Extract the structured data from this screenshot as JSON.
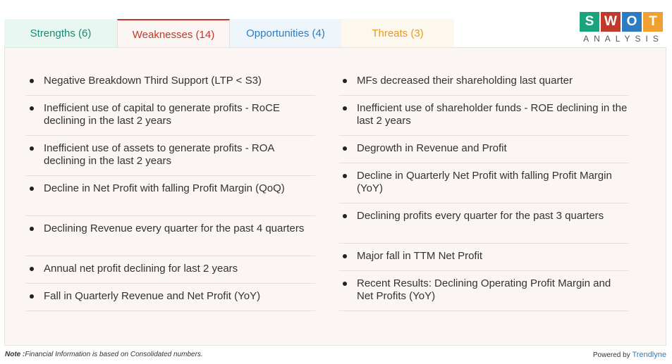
{
  "tabs": [
    {
      "label": "Strengths (6)"
    },
    {
      "label": "Weaknesses (14)"
    },
    {
      "label": "Opportunities (4)"
    },
    {
      "label": "Threats (3)"
    }
  ],
  "active_tab": "Weaknesses (14)",
  "logo": {
    "letters": [
      "S",
      "W",
      "O",
      "T"
    ],
    "letter_colors": [
      "#1aa37c",
      "#c0392b",
      "#2d7cc1",
      "#f0a030"
    ],
    "subtitle": "ANALYSIS"
  },
  "weaknesses": {
    "left": [
      "Negative Breakdown Third Support (LTP < S3)",
      "Inefficient use of capital to generate profits - RoCE declining in the last 2 years",
      "Inefficient use of assets to generate profits - ROA declining in the last 2 years",
      "Decline in Net Profit with falling Profit Margin (QoQ)",
      "Declining Revenue every quarter for the past 4 quarters",
      "Annual net profit declining for last 2 years",
      "Fall in Quarterly Revenue and Net Profit (YoY)"
    ],
    "right": [
      "MFs decreased their shareholding last quarter",
      "Inefficient use of shareholder funds - ROE declining in the last 2 years",
      "Degrowth in Revenue and Profit",
      "Decline in Quarterly Net Profit with falling Profit Margin (YoY)",
      "Declining profits every quarter for the past 3 quarters",
      "Major fall in TTM Net Profit",
      "Recent Results: Declining Operating Profit Margin and Net Profits (YoY)"
    ]
  },
  "footer": {
    "note_label": "Note :",
    "note_text": "Financial Information is based on Consolidated numbers.",
    "powered_by": "Powered by ",
    "brand": "Trendlyne"
  }
}
